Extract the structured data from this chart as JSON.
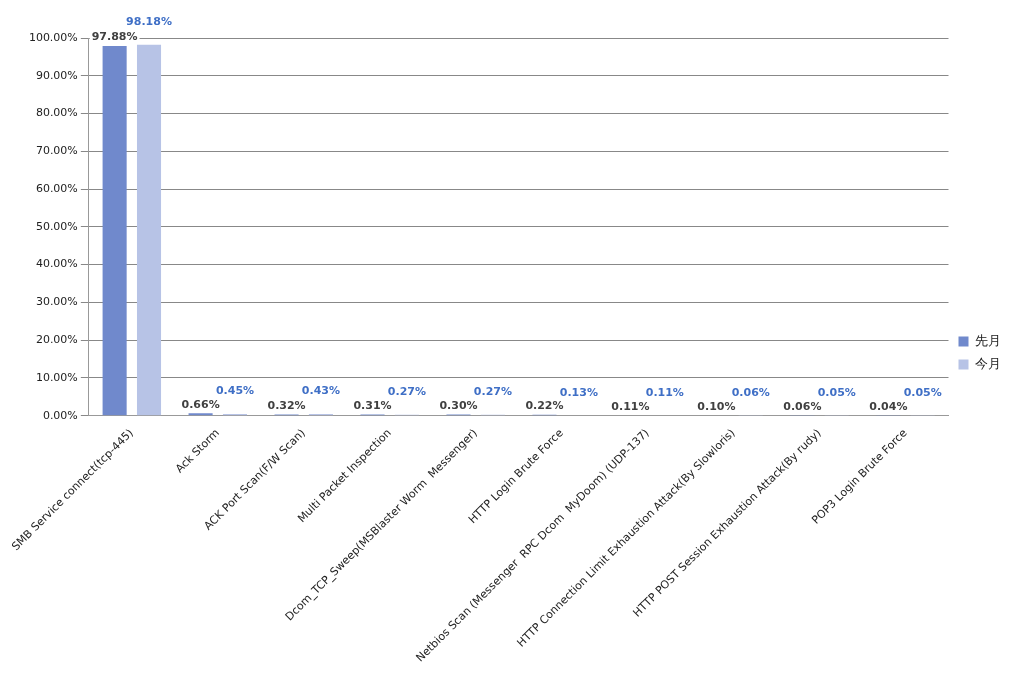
{
  "chart_data": {
    "type": "bar",
    "categories": [
      "SMB Service connect(tcp-445)",
      "Ack Storm",
      "ACK Port Scan(F/W Scan)",
      "Multi Packet Inspection",
      "Dcom_TCP_Sweep(MSBlaster Worm  Messenger)",
      "HTTP Login Brute Force",
      "Netbios Scan (Messenger  RPC Dcom  MyDoom) (UDP-137)",
      "HTTP Connection Limit Exhaustion Attack(By Slowloris)",
      "HTTP POST Session Exhaustion Attack(By rudy)",
      "POP3 Login Brute Force"
    ],
    "series": [
      {
        "name": "先月",
        "color": "#7089cc",
        "values": [
          97.88,
          0.66,
          0.32,
          0.31,
          0.3,
          0.22,
          0.11,
          0.1,
          0.06,
          0.04
        ],
        "value_labels": [
          "97.88%",
          "0.66%",
          "0.32%",
          "0.31%",
          "0.30%",
          "0.22%",
          "0.11%",
          "0.10%",
          "0.06%",
          "0.04%"
        ]
      },
      {
        "name": "今月",
        "color": "#b7c3e6",
        "values": [
          98.18,
          0.45,
          0.43,
          0.27,
          0.27,
          0.13,
          0.11,
          0.06,
          0.05,
          0.05
        ],
        "value_labels": [
          "98.18%",
          "0.45%",
          "0.43%",
          "0.27%",
          "0.27%",
          "0.13%",
          "0.11%",
          "0.06%",
          "0.05%",
          "0.05%"
        ]
      }
    ],
    "ylim": [
      0,
      100
    ],
    "yticks": [
      {
        "value": 0,
        "label": "0.00%"
      },
      {
        "value": 10,
        "label": "10.00%"
      },
      {
        "value": 20,
        "label": "20.00%"
      },
      {
        "value": 30,
        "label": "30.00%"
      },
      {
        "value": 40,
        "label": "40.00%"
      },
      {
        "value": 50,
        "label": "50.00%"
      },
      {
        "value": 60,
        "label": "60.00%"
      },
      {
        "value": 70,
        "label": "70.00%"
      },
      {
        "value": 80,
        "label": "80.00%"
      },
      {
        "value": 90,
        "label": "90.00%"
      },
      {
        "value": 100,
        "label": "100.00%"
      }
    ],
    "grid": "y",
    "legend": "right"
  }
}
